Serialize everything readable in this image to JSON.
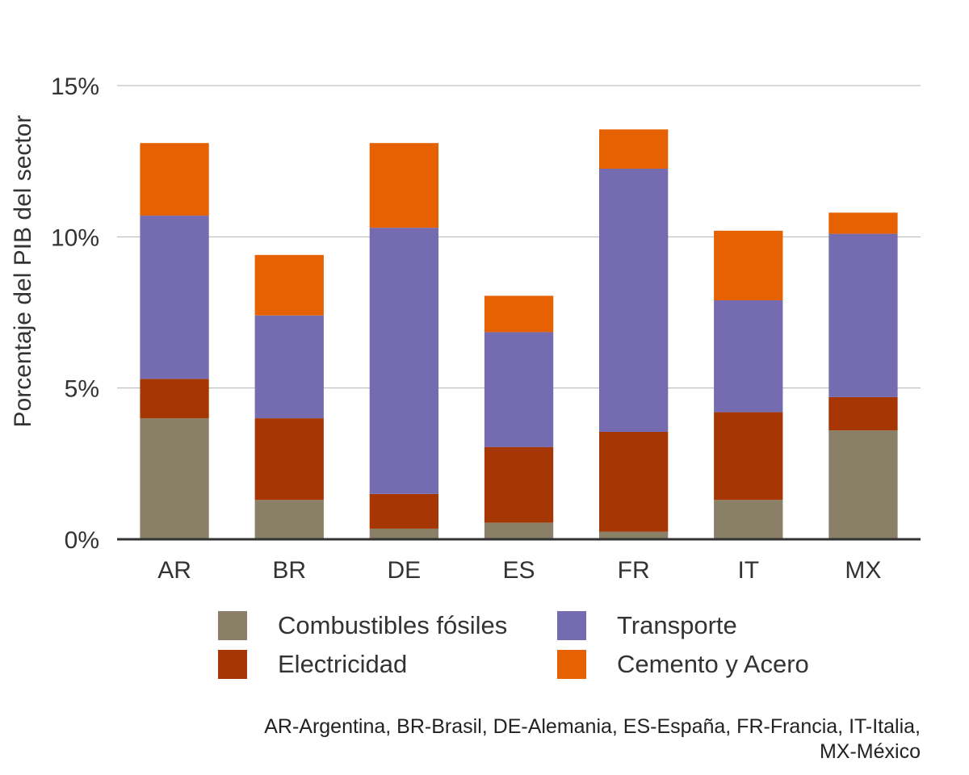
{
  "chart_data": {
    "type": "bar",
    "stacked": true,
    "categories": [
      "AR",
      "BR",
      "DE",
      "ES",
      "FR",
      "IT",
      "MX"
    ],
    "series": [
      {
        "name": "Combustibles fósiles",
        "color": "#8a7f67",
        "values": [
          4.0,
          1.3,
          0.35,
          0.55,
          0.25,
          1.3,
          3.6
        ]
      },
      {
        "name": "Electricidad",
        "color": "#a63603",
        "values": [
          1.3,
          2.7,
          1.15,
          2.5,
          3.3,
          2.9,
          1.1
        ]
      },
      {
        "name": "Transporte",
        "color": "#756bb1",
        "values": [
          5.4,
          3.4,
          8.8,
          3.8,
          8.7,
          3.7,
          5.4
        ]
      },
      {
        "name": "Cemento y Acero",
        "color": "#e66101",
        "values": [
          2.4,
          2.0,
          2.8,
          1.2,
          1.3,
          2.3,
          0.7
        ]
      }
    ],
    "ylabel": "Porcentaje del PIB del sector",
    "yticks": [
      "0%",
      "5%",
      "10%",
      "15%"
    ],
    "ytick_values": [
      0,
      5,
      10,
      15
    ],
    "ylim": [
      0,
      15
    ],
    "grid": true,
    "legend_position": "bottom"
  },
  "legend": {
    "items": [
      {
        "label": "Combustibles fósiles",
        "color": "#8a7f67"
      },
      {
        "label": "Transporte",
        "color": "#756bb1"
      },
      {
        "label": "Electricidad",
        "color": "#a63603"
      },
      {
        "label": "Cemento y Acero",
        "color": "#e66101"
      }
    ]
  },
  "footnote": {
    "line1": "AR-Argentina, BR-Brasil, DE-Alemania, ES-España, FR-Francia, IT-Italia,",
    "line2": "MX-México"
  }
}
